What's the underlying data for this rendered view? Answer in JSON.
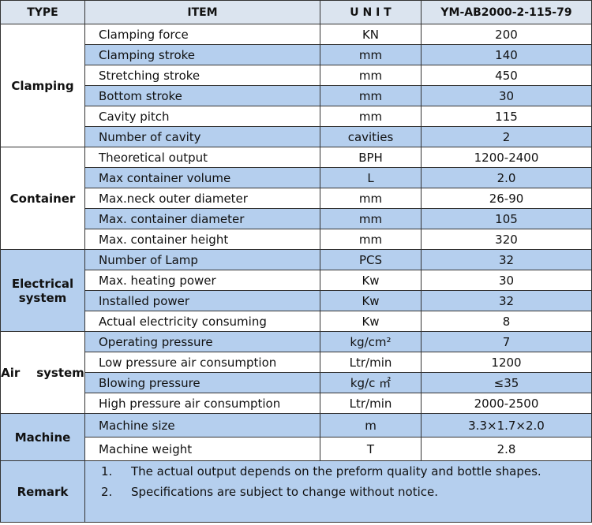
{
  "header": [
    "TYPE",
    "ITEM",
    "U N I T",
    "YM-AB2000-2-115-79"
  ],
  "groups": [
    {
      "type": "Clamping",
      "rows": [
        [
          "Clamping force",
          "KN",
          "200"
        ],
        [
          "Clamping stroke",
          "mm",
          "140"
        ],
        [
          "Stretching stroke",
          "mm",
          "450"
        ],
        [
          "Bottom stroke",
          "mm",
          "30"
        ],
        [
          "Cavity pitch",
          "mm",
          "115"
        ],
        [
          "Number of cavity",
          "cavities",
          "2"
        ]
      ]
    },
    {
      "type": "Container",
      "rows": [
        [
          "Theoretical output",
          "BPH",
          "1200-2400"
        ],
        [
          "Max container volume",
          "L",
          "2.0"
        ],
        [
          "Max.neck outer diameter",
          "mm",
          "26-90"
        ],
        [
          "Max. container diameter",
          "mm",
          "105"
        ],
        [
          "Max. container height",
          "mm",
          "320"
        ]
      ]
    },
    {
      "type": "Electrical system",
      "rows": [
        [
          "Number of Lamp",
          "PCS",
          "32"
        ],
        [
          "Max. heating power",
          "Kw",
          "30"
        ],
        [
          "Installed power",
          "Kw",
          "32"
        ],
        [
          "Actual electricity consuming",
          "Kw",
          "8"
        ]
      ]
    },
    {
      "type": "Air    system",
      "rows": [
        [
          "Operating pressure",
          "kg/cm²",
          "7"
        ],
        [
          "Low pressure air consumption",
          "Ltr/min",
          "1200"
        ],
        [
          "Blowing pressure",
          "kg/c ㎡",
          "≤35"
        ],
        [
          "High pressure air consumption",
          "Ltr/min",
          "2000-2500"
        ]
      ]
    },
    {
      "type": "Machine",
      "rows": [
        [
          "Machine size",
          "m",
          "3.3×1.7×2.0"
        ],
        [
          "Machine weight",
          "T",
          "2.8"
        ]
      ]
    }
  ],
  "remark": {
    "type": "Remark",
    "notes": [
      {
        "num": "1.",
        "text": "The actual output depends on the preform quality and bottle shapes."
      },
      {
        "num": "2.",
        "text": "Specifications are subject to change without notice."
      }
    ]
  }
}
